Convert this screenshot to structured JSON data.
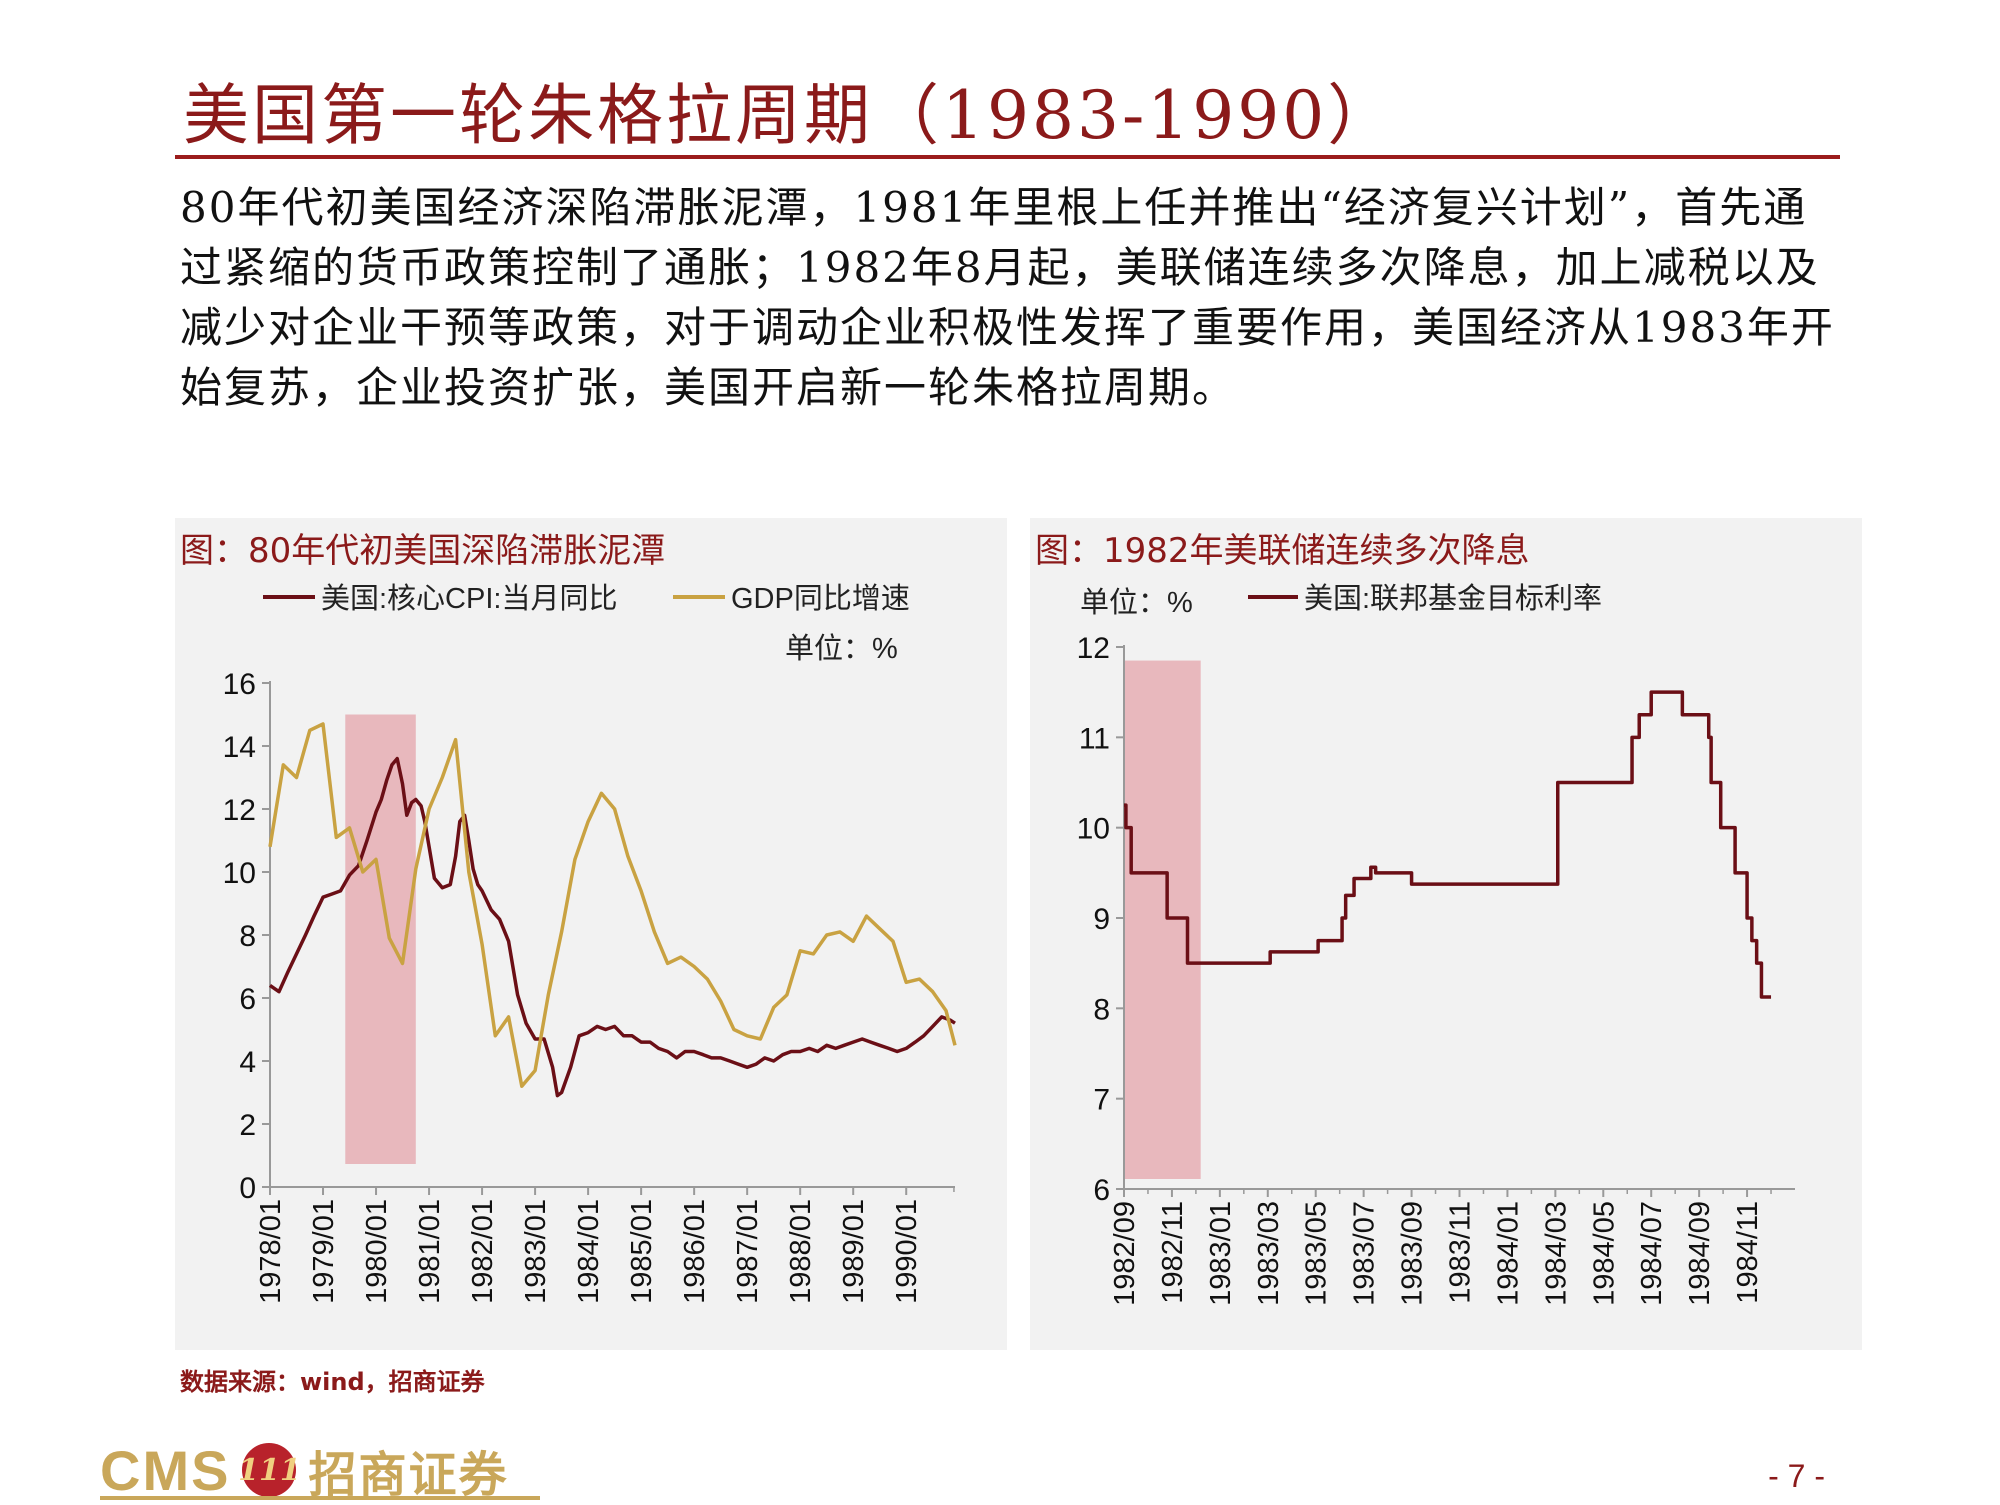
{
  "title": "美国第一轮朱格拉周期（1983-1990）",
  "intro": "80年代初美国经济深陷滞胀泥潭，1981年里根上任并推出“经济复兴计划”，首先通过紧缩的货币政策控制了通胀；1982年8月起，美联储连续多次降息，加上减税以及减少对企业干预等政策，对于调动企业积极性发挥了重要作用，美国经济从1983年开始复苏，企业投资扩张，美国开启新一轮朱格拉周期。",
  "source": "数据来源：wind，招商证券",
  "logo": {
    "cms": "CMS",
    "badge": "111",
    "name": "招商证券"
  },
  "page_number": "- 7 -",
  "colors": {
    "accent": "#8b1a1a",
    "cpi_line": "#6b0f16",
    "gdp_line": "#c9a242",
    "shade": "#e8b8bd",
    "panel_bg": "#f2f2f2"
  },
  "chart_data": [
    {
      "type": "line",
      "title": "图：80年代初美国深陷滞胀泥潭",
      "unit_label": "单位：%",
      "ylim": [
        0,
        16
      ],
      "yticks": [
        "0",
        "2",
        "4",
        "6",
        "8",
        "10",
        "12",
        "14",
        "16"
      ],
      "xlim": [
        1978.0,
        1990.92
      ],
      "xtick_labels": [
        "1978/01",
        "1979/01",
        "1980/01",
        "1981/01",
        "1982/01",
        "1983/01",
        "1984/01",
        "1985/01",
        "1986/01",
        "1987/01",
        "1988/01",
        "1989/01",
        "1990/01"
      ],
      "shaded_region": {
        "from": 1979.42,
        "to": 1980.75,
        "y_top": 15
      },
      "legend": "top",
      "series": [
        {
          "name": "美国:核心CPI:当月同比",
          "x": [
            1978.0,
            1978.17,
            1978.33,
            1978.5,
            1978.67,
            1978.83,
            1979.0,
            1979.17,
            1979.33,
            1979.5,
            1979.67,
            1979.83,
            1980.0,
            1980.1,
            1980.2,
            1980.3,
            1980.4,
            1980.5,
            1980.58,
            1980.67,
            1980.75,
            1980.85,
            1980.92,
            1981.0,
            1981.1,
            1981.25,
            1981.4,
            1981.5,
            1981.58,
            1981.67,
            1981.75,
            1981.83,
            1981.92,
            1982.0,
            1982.17,
            1982.33,
            1982.5,
            1982.67,
            1982.83,
            1983.0,
            1983.17,
            1983.33,
            1983.42,
            1983.5,
            1983.67,
            1983.83,
            1984.0,
            1984.17,
            1984.33,
            1984.5,
            1984.67,
            1984.83,
            1985.0,
            1985.17,
            1985.33,
            1985.5,
            1985.67,
            1985.83,
            1986.0,
            1986.17,
            1986.33,
            1986.5,
            1986.67,
            1986.83,
            1987.0,
            1987.17,
            1987.33,
            1987.5,
            1987.67,
            1987.83,
            1988.0,
            1988.17,
            1988.33,
            1988.5,
            1988.67,
            1988.83,
            1989.0,
            1989.17,
            1989.33,
            1989.5,
            1989.67,
            1989.83,
            1990.0,
            1990.17,
            1990.33,
            1990.5,
            1990.67,
            1990.83,
            1990.92
          ],
          "values": [
            6.4,
            6.2,
            6.8,
            7.4,
            8.0,
            8.6,
            9.2,
            9.3,
            9.4,
            9.9,
            10.2,
            11.0,
            11.9,
            12.3,
            12.9,
            13.4,
            13.6,
            12.8,
            11.8,
            12.2,
            12.3,
            12.1,
            11.6,
            10.8,
            9.8,
            9.5,
            9.6,
            10.5,
            11.6,
            11.8,
            11.0,
            10.1,
            9.6,
            9.4,
            8.8,
            8.5,
            7.8,
            6.1,
            5.2,
            4.7,
            4.7,
            3.8,
            2.9,
            3.0,
            3.8,
            4.8,
            4.9,
            5.1,
            5.0,
            5.1,
            4.8,
            4.8,
            4.6,
            4.6,
            4.4,
            4.3,
            4.1,
            4.3,
            4.3,
            4.2,
            4.1,
            4.1,
            4.0,
            3.9,
            3.8,
            3.9,
            4.1,
            4.0,
            4.2,
            4.3,
            4.3,
            4.4,
            4.3,
            4.5,
            4.4,
            4.5,
            4.6,
            4.7,
            4.6,
            4.5,
            4.4,
            4.3,
            4.4,
            4.6,
            4.8,
            5.1,
            5.4,
            5.3,
            5.2
          ]
        },
        {
          "name": "GDP同比增速",
          "x": [
            1978.0,
            1978.25,
            1978.5,
            1978.75,
            1979.0,
            1979.25,
            1979.5,
            1979.75,
            1980.0,
            1980.25,
            1980.5,
            1980.75,
            1981.0,
            1981.25,
            1981.5,
            1981.75,
            1982.0,
            1982.25,
            1982.5,
            1982.75,
            1983.0,
            1983.25,
            1983.5,
            1983.75,
            1984.0,
            1984.25,
            1984.5,
            1984.75,
            1985.0,
            1985.25,
            1985.5,
            1985.75,
            1986.0,
            1986.25,
            1986.5,
            1986.75,
            1987.0,
            1987.25,
            1987.5,
            1987.75,
            1988.0,
            1988.25,
            1988.5,
            1988.75,
            1989.0,
            1989.25,
            1989.5,
            1989.75,
            1990.0,
            1990.25,
            1990.5,
            1990.75,
            1990.92
          ],
          "values": [
            10.8,
            13.4,
            13.0,
            14.5,
            14.7,
            11.1,
            11.4,
            10.0,
            10.4,
            7.9,
            7.1,
            10.1,
            12.0,
            13.0,
            14.2,
            10.0,
            7.7,
            4.8,
            5.4,
            3.2,
            3.7,
            6.1,
            8.1,
            10.4,
            11.6,
            12.5,
            12.0,
            10.5,
            9.4,
            8.1,
            7.1,
            7.3,
            7.0,
            6.6,
            5.9,
            5.0,
            4.8,
            4.7,
            5.7,
            6.1,
            7.5,
            7.4,
            8.0,
            8.1,
            7.8,
            8.6,
            8.2,
            7.8,
            6.5,
            6.6,
            6.2,
            5.6,
            4.5
          ]
        }
      ]
    },
    {
      "type": "line",
      "title": "图：1982年美联储连续多次降息",
      "unit_label": "单位：%",
      "ylim": [
        6,
        12
      ],
      "yticks": [
        "6",
        "7",
        "8",
        "9",
        "10",
        "11",
        "12"
      ],
      "xlim": [
        0,
        28
      ],
      "xtick_labels": [
        "1982/09",
        "1982/11",
        "1983/01",
        "1983/03",
        "1983/05",
        "1983/07",
        "1983/09",
        "1983/11",
        "1984/01",
        "1984/03",
        "1984/05",
        "1984/07",
        "1984/09",
        "1984/11"
      ],
      "shaded_region": {
        "from": 0,
        "to": 3.2,
        "y_top": 11.85
      },
      "legend": "top",
      "series": [
        {
          "name": "美国:联邦基金目标利率",
          "step": true,
          "x": [
            0.0,
            0.08,
            0.15,
            0.3,
            1.6,
            1.8,
            2.5,
            2.65,
            6.0,
            6.1,
            7.0,
            7.1,
            8.1,
            8.2,
            9.1,
            9.25,
            9.5,
            9.6,
            10.2,
            10.3,
            10.5,
            10.8,
            12.0,
            12.2,
            18.0,
            18.1,
            21.0,
            21.2,
            21.5,
            22.0,
            23.0,
            23.3,
            24.4,
            24.5,
            24.9,
            25.1,
            25.5,
            26.0,
            26.2,
            26.4,
            26.6,
            27.0
          ],
          "values": [
            10.25,
            10.0,
            10.0,
            9.5,
            9.5,
            9.0,
            9.0,
            8.5,
            8.5,
            8.625,
            8.625,
            8.625,
            8.75,
            8.75,
            9.0,
            9.25,
            9.25,
            9.4375,
            9.4375,
            9.5625,
            9.5,
            9.5,
            9.375,
            9.375,
            9.375,
            10.5,
            10.5,
            11.0,
            11.25,
            11.5,
            11.5,
            11.25,
            11.0,
            10.5,
            10.0,
            10.0,
            9.5,
            9.0,
            8.75,
            8.5,
            8.125,
            8.125
          ]
        }
      ]
    }
  ],
  "left_legend_cpi": "美国:核心CPI:当月同比",
  "left_legend_gdp": "GDP同比增速",
  "left_unit": "单位：%",
  "right_legend": "美国:联邦基金目标利率",
  "right_unit": "单位：%"
}
